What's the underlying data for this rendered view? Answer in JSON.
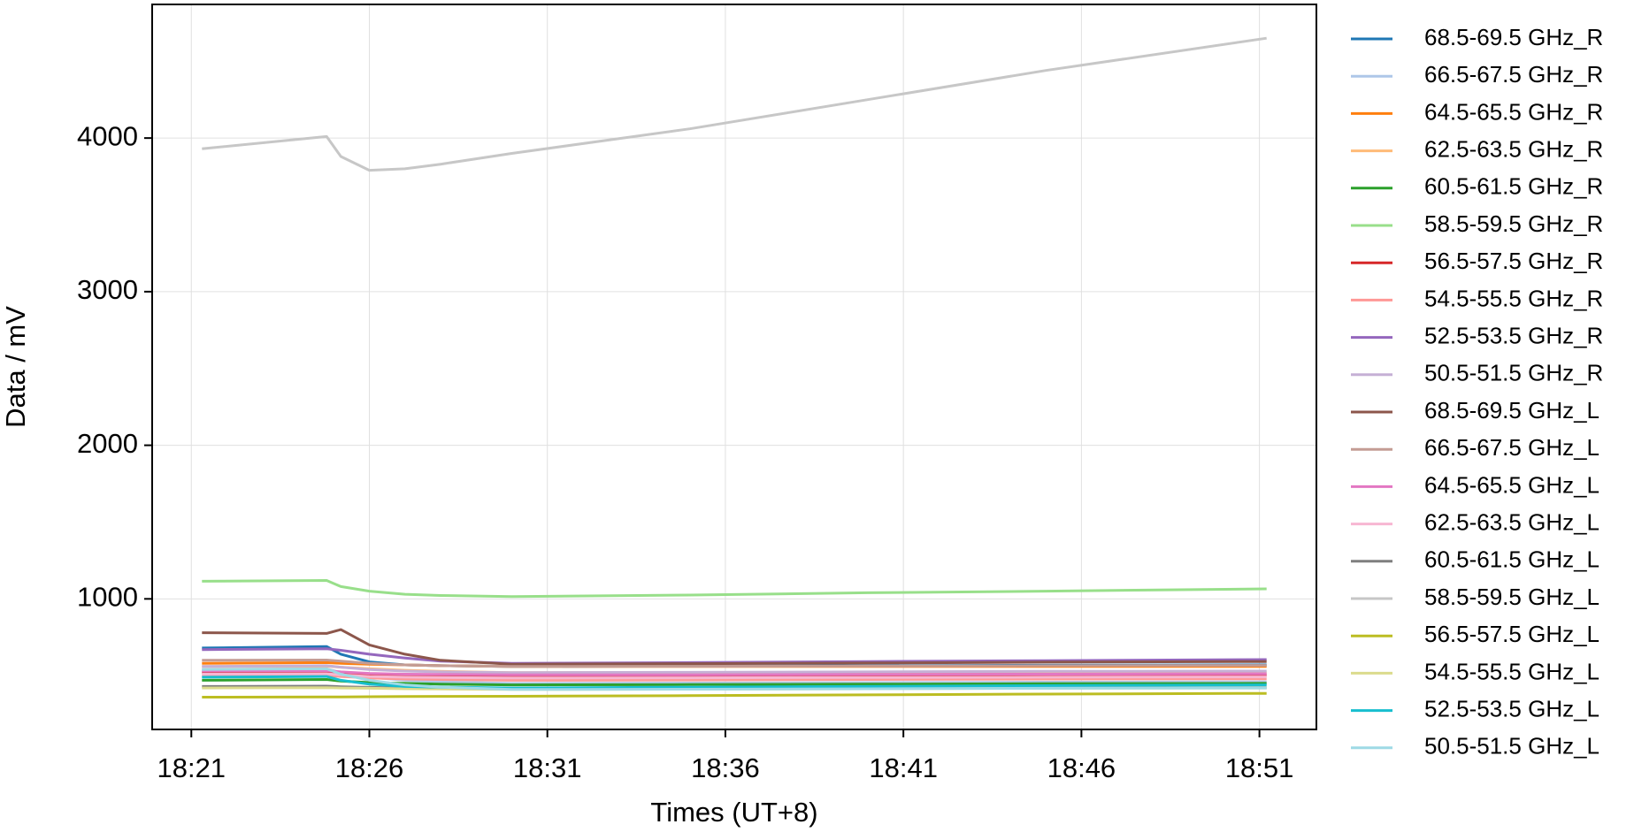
{
  "chart_data": {
    "type": "line",
    "xlabel": "Times (UT+8)",
    "ylabel": "Data / mV",
    "x": [
      21.3,
      24.8,
      25.2,
      26,
      27,
      28,
      30,
      35,
      40,
      45,
      51.2
    ],
    "xlim": [
      19.9,
      52.6
    ],
    "xticks": [
      {
        "value": 21,
        "label": "18:21"
      },
      {
        "value": 26,
        "label": "18:26"
      },
      {
        "value": 31,
        "label": "18:31"
      },
      {
        "value": 36,
        "label": "18:36"
      },
      {
        "value": 41,
        "label": "18:41"
      },
      {
        "value": 46,
        "label": "18:46"
      },
      {
        "value": 51,
        "label": "18:51"
      }
    ],
    "ylim": [
      150,
      4870
    ],
    "yticks": [
      1000,
      2000,
      3000,
      4000
    ],
    "grid": true,
    "legend": "outside right",
    "series": [
      {
        "name": "68.5-69.5 GHz_R",
        "color": "#1f77b4",
        "values": [
          680,
          690,
          640,
          590,
          570,
          565,
          560,
          562,
          565,
          568,
          570
        ]
      },
      {
        "name": "66.5-67.5 GHz_R",
        "color": "#aec7e8",
        "values": [
          540,
          545,
          520,
          490,
          470,
          460,
          450,
          452,
          455,
          458,
          460
        ]
      },
      {
        "name": "64.5-65.5 GHz_R",
        "color": "#ff7f0e",
        "values": [
          580,
          585,
          580,
          575,
          570,
          565,
          560,
          560,
          560,
          560,
          560
        ]
      },
      {
        "name": "62.5-63.5 GHz_R",
        "color": "#ffbb78",
        "values": [
          560,
          562,
          555,
          545,
          535,
          528,
          520,
          520,
          520,
          520,
          520
        ]
      },
      {
        "name": "60.5-61.5 GHz_R",
        "color": "#2ca02c",
        "values": [
          470,
          475,
          465,
          455,
          450,
          445,
          440,
          442,
          445,
          448,
          450
        ]
      },
      {
        "name": "58.5-59.5 GHz_R",
        "color": "#98df8a",
        "values": [
          1115,
          1120,
          1080,
          1050,
          1030,
          1022,
          1015,
          1025,
          1040,
          1050,
          1065
        ]
      },
      {
        "name": "56.5-57.5 GHz_R",
        "color": "#d62728",
        "values": [
          520,
          522,
          515,
          505,
          500,
          498,
          495,
          496,
          498,
          500,
          502
        ]
      },
      {
        "name": "54.5-55.5 GHz_R",
        "color": "#ff9896",
        "values": [
          500,
          502,
          495,
          485,
          478,
          475,
          470,
          472,
          475,
          478,
          480
        ]
      },
      {
        "name": "52.5-53.5 GHz_R",
        "color": "#9467bd",
        "values": [
          670,
          675,
          665,
          640,
          615,
          595,
          580,
          585,
          592,
          598,
          605
        ]
      },
      {
        "name": "50.5-51.5 GHz_R",
        "color": "#c5b0d5",
        "values": [
          560,
          565,
          555,
          540,
          530,
          525,
          520,
          522,
          525,
          528,
          530
        ]
      },
      {
        "name": "68.5-69.5 GHz_L",
        "color": "#8c564b",
        "values": [
          780,
          775,
          800,
          700,
          640,
          600,
          575,
          578,
          582,
          588,
          592
        ]
      },
      {
        "name": "66.5-67.5 GHz_L",
        "color": "#c49c94",
        "values": [
          600,
          602,
          595,
          580,
          570,
          565,
          560,
          561,
          563,
          565,
          567
        ]
      },
      {
        "name": "64.5-65.5 GHz_L",
        "color": "#e377c2",
        "values": [
          530,
          532,
          525,
          515,
          510,
          508,
          505,
          506,
          508,
          510,
          512
        ]
      },
      {
        "name": "62.5-63.5 GHz_L",
        "color": "#f7b6d2",
        "values": [
          510,
          512,
          505,
          495,
          490,
          488,
          485,
          486,
          488,
          490,
          492
        ]
      },
      {
        "name": "60.5-61.5 GHz_L",
        "color": "#7f7f7f",
        "values": [
          430,
          432,
          428,
          424,
          420,
          418,
          415,
          416,
          418,
          420,
          422
        ]
      },
      {
        "name": "58.5-59.5 GHz_L",
        "color": "#c7c7c7",
        "values": [
          3930,
          4010,
          3880,
          3790,
          3800,
          3830,
          3900,
          4060,
          4250,
          4440,
          4650
        ]
      },
      {
        "name": "56.5-57.5 GHz_L",
        "color": "#bcbd22",
        "values": [
          360,
          362,
          362,
          363,
          364,
          365,
          366,
          370,
          375,
          380,
          385
        ]
      },
      {
        "name": "54.5-55.5 GHz_L",
        "color": "#dbdb8d",
        "values": [
          420,
          422,
          420,
          418,
          415,
          413,
          410,
          412,
          415,
          418,
          420
        ]
      },
      {
        "name": "52.5-53.5 GHz_L",
        "color": "#17becf",
        "values": [
          490,
          495,
          470,
          445,
          430,
          425,
          420,
          425,
          430,
          435,
          440
        ]
      },
      {
        "name": "50.5-51.5 GHz_L",
        "color": "#9edae5",
        "values": [
          540,
          545,
          510,
          470,
          440,
          425,
          410,
          412,
          415,
          418,
          420
        ]
      }
    ]
  }
}
